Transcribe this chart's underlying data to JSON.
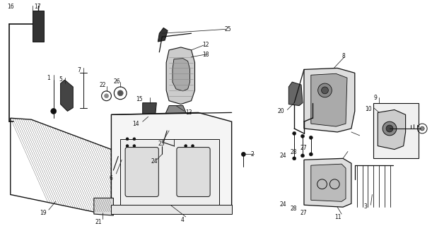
{
  "bg_color": "#ffffff",
  "lc": "#111111",
  "fig_width": 6.11,
  "fig_height": 3.2,
  "dpi": 100,
  "label_fs": 5.5
}
